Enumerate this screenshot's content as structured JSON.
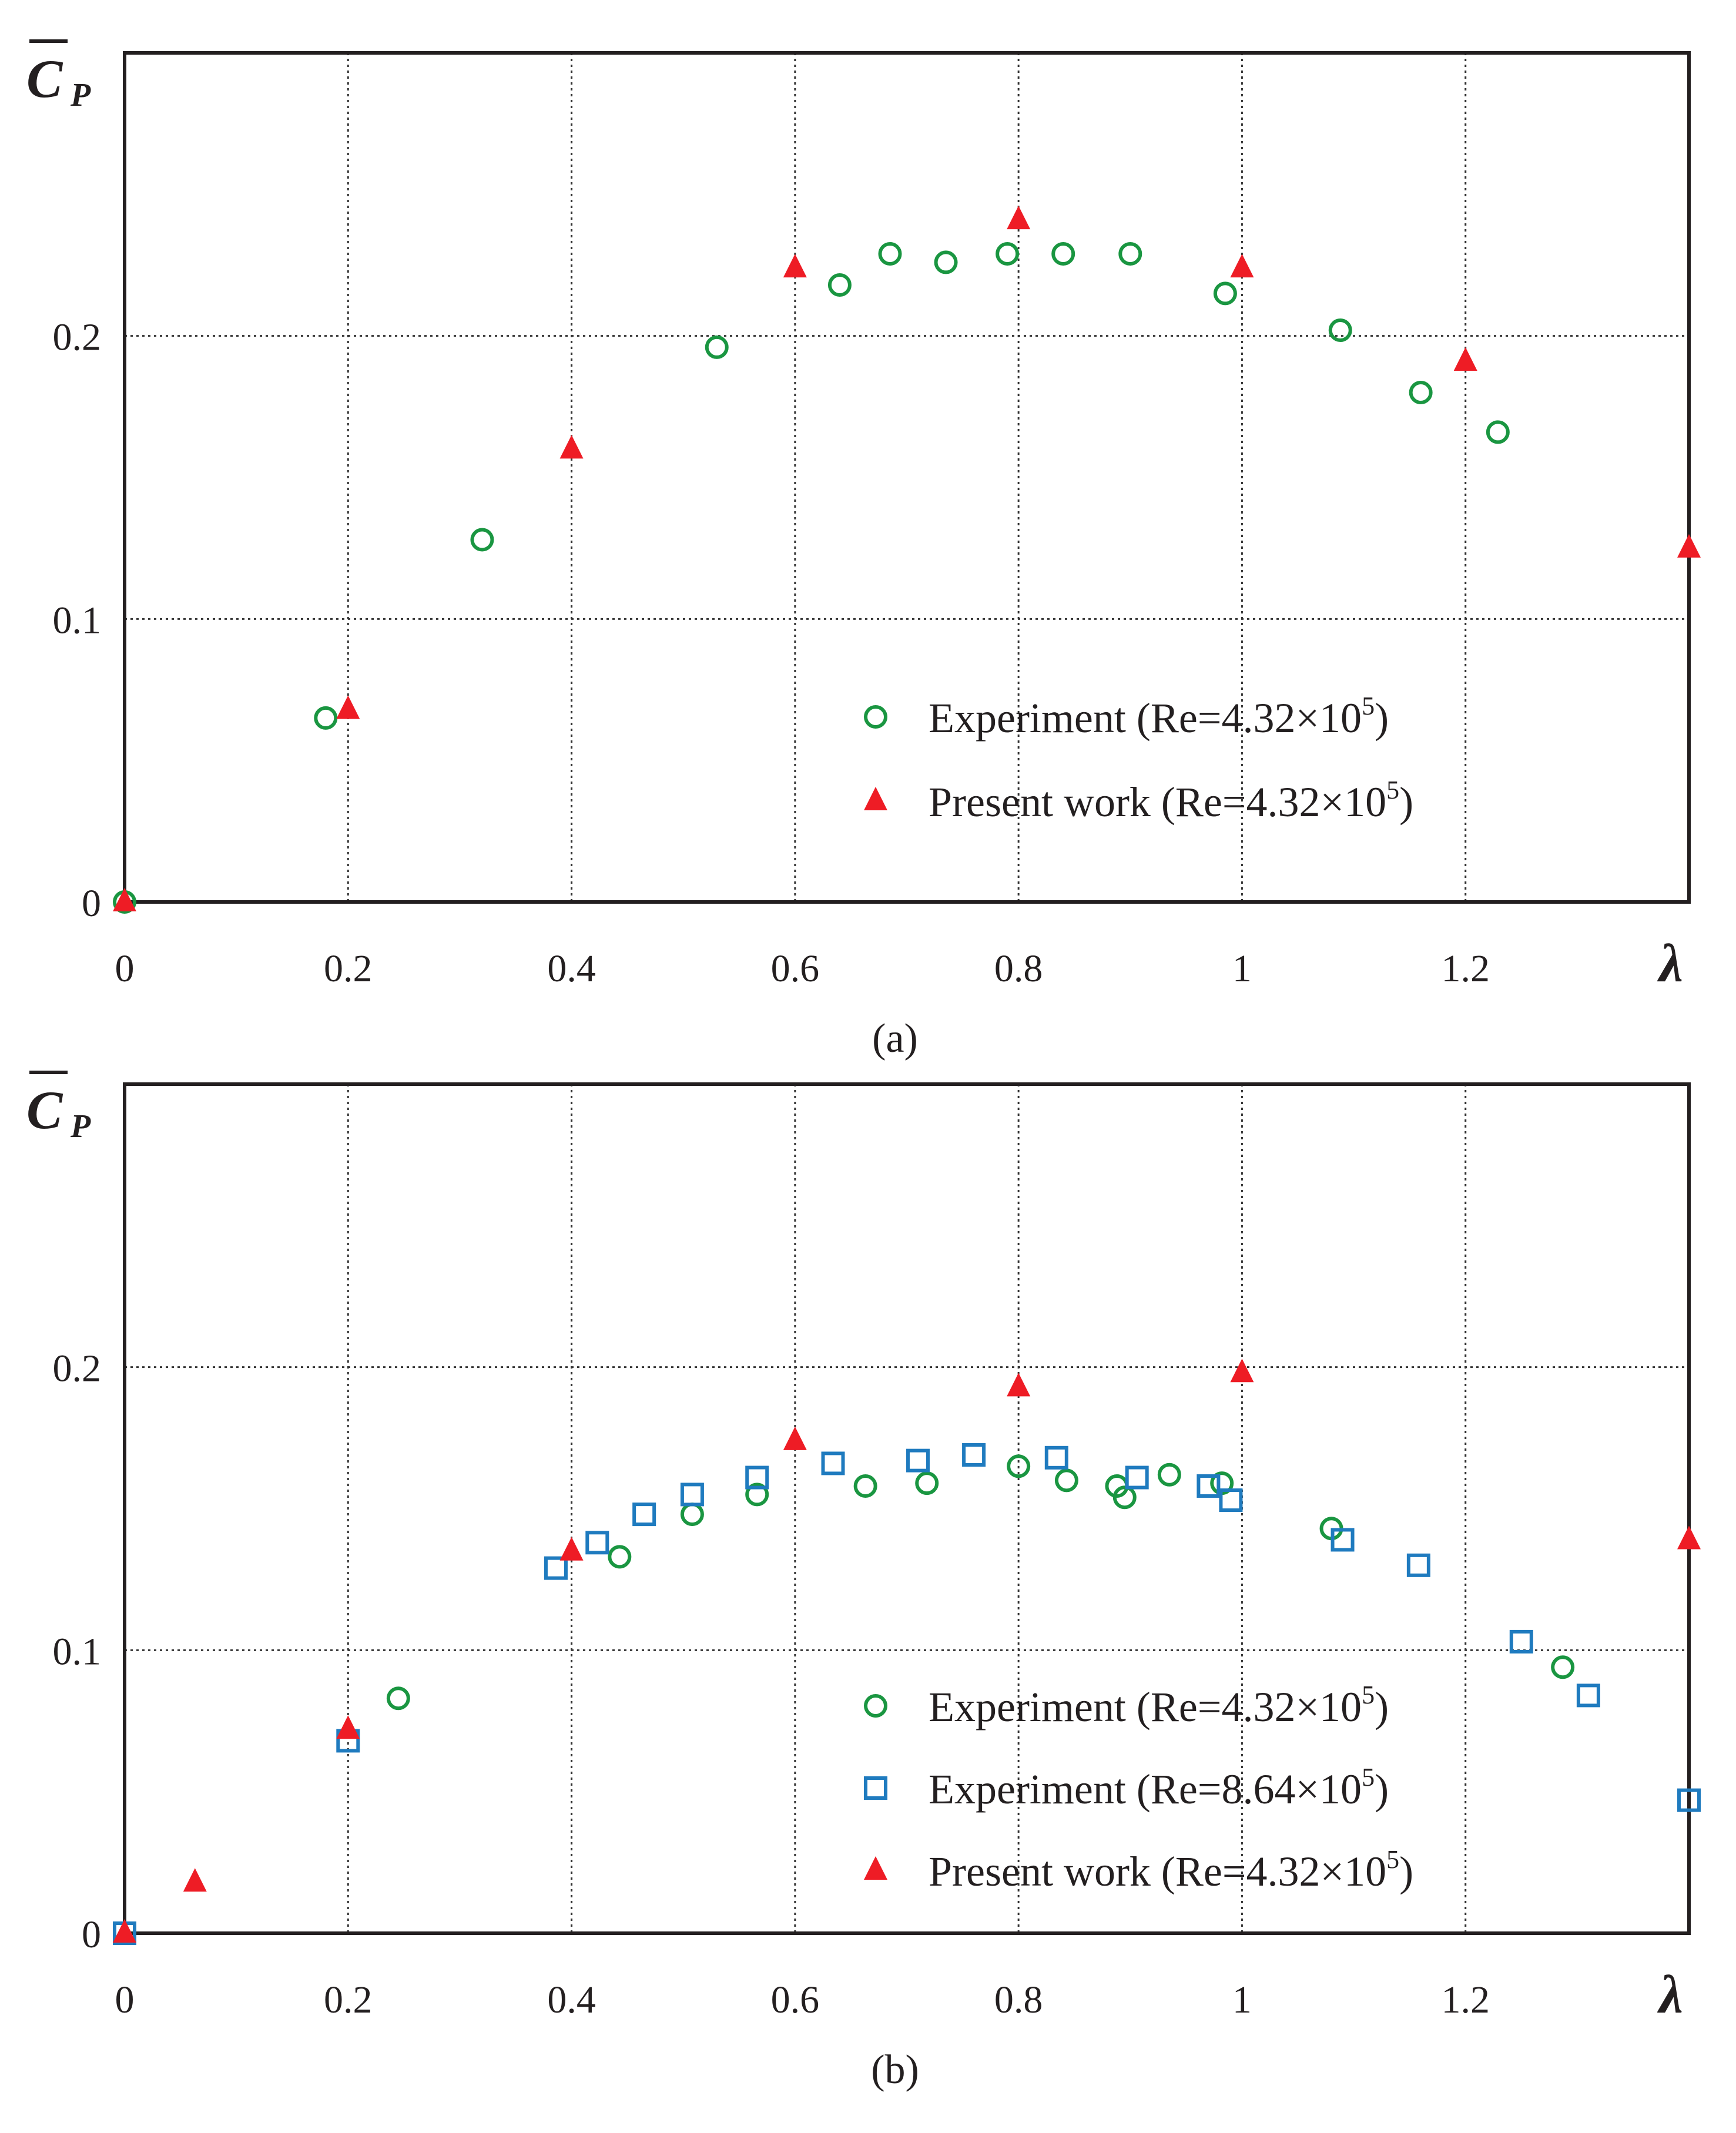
{
  "colors": {
    "experiment_re432": "#1a9641",
    "experiment_re864": "#1f7bbf",
    "present_work": "#ee1c25",
    "axis": "#231f20"
  },
  "chart_data": [
    {
      "type": "scatter",
      "panel_label": "(a)",
      "ylabel": "C",
      "ylabel_sub": "P",
      "xlabel": "λ",
      "xlim": [
        0,
        1.4
      ],
      "ylim": [
        0,
        0.3
      ],
      "grid": true,
      "legend_position": "bottom-right",
      "x_ticks": [
        {
          "value": 0,
          "label": "0"
        },
        {
          "value": 0.2,
          "label": "0.2"
        },
        {
          "value": 0.4,
          "label": "0.4"
        },
        {
          "value": 0.6,
          "label": "0.6"
        },
        {
          "value": 0.8,
          "label": "0.8"
        },
        {
          "value": 1.0,
          "label": "1"
        },
        {
          "value": 1.2,
          "label": "1.2"
        }
      ],
      "y_ticks": [
        {
          "value": 0,
          "label": "0"
        },
        {
          "value": 0.1,
          "label": "0.1"
        },
        {
          "value": 0.2,
          "label": "0.2"
        }
      ],
      "series": [
        {
          "name": "Experiment (Re=4.32×10",
          "name_sup": "5",
          "name_end": ")",
          "marker": "circle",
          "color_key": "experiment_re432",
          "x": [
            0,
            0.18,
            0.32,
            0.53,
            0.64,
            0.685,
            0.735,
            0.79,
            0.84,
            0.9,
            0.985,
            1.088,
            1.16,
            1.229
          ],
          "y": [
            0,
            0.065,
            0.128,
            0.196,
            0.218,
            0.229,
            0.226,
            0.229,
            0.229,
            0.229,
            0.215,
            0.202,
            0.18,
            0.166
          ]
        },
        {
          "name": "Present work (Re=4.32×10",
          "name_sup": "5",
          "name_end": ")",
          "marker": "triangle",
          "color_key": "present_work",
          "x": [
            0,
            0.2,
            0.4,
            0.6,
            0.8,
            1.0,
            1.2,
            1.4
          ],
          "y": [
            0,
            0.068,
            0.16,
            0.224,
            0.241,
            0.224,
            0.191,
            0.125
          ]
        }
      ]
    },
    {
      "type": "scatter",
      "panel_label": "(b)",
      "ylabel": "C",
      "ylabel_sub": "P",
      "xlabel": "λ",
      "xlim": [
        0,
        1.4
      ],
      "ylim": [
        0,
        0.3
      ],
      "grid": true,
      "legend_position": "bottom-right",
      "x_ticks": [
        {
          "value": 0,
          "label": "0"
        },
        {
          "value": 0.2,
          "label": "0.2"
        },
        {
          "value": 0.4,
          "label": "0.4"
        },
        {
          "value": 0.6,
          "label": "0.6"
        },
        {
          "value": 0.8,
          "label": "0.8"
        },
        {
          "value": 1.0,
          "label": "1"
        },
        {
          "value": 1.2,
          "label": "1.2"
        }
      ],
      "y_ticks": [
        {
          "value": 0,
          "label": "0"
        },
        {
          "value": 0.1,
          "label": "0.1"
        },
        {
          "value": 0.2,
          "label": "0.2"
        }
      ],
      "series": [
        {
          "name": "Experiment (Re=4.32×10",
          "name_sup": "5",
          "name_end": ")",
          "marker": "circle",
          "color_key": "experiment_re432",
          "x": [
            0.245,
            0.443,
            0.508,
            0.566,
            0.663,
            0.718,
            0.8,
            0.843,
            0.888,
            0.895,
            0.935,
            0.982,
            1.08,
            1.287
          ],
          "y": [
            0.083,
            0.133,
            0.148,
            0.155,
            0.158,
            0.159,
            0.165,
            0.16,
            0.158,
            0.154,
            0.162,
            0.159,
            0.143,
            0.094
          ]
        },
        {
          "name": "Experiment (Re=8.64×10",
          "name_sup": "5",
          "name_end": ")",
          "marker": "square",
          "color_key": "experiment_re864",
          "x": [
            0,
            0.2,
            0.386,
            0.423,
            0.465,
            0.508,
            0.566,
            0.634,
            0.71,
            0.76,
            0.834,
            0.906,
            0.97,
            0.99,
            1.09,
            1.158,
            1.25,
            1.31,
            1.4
          ],
          "y": [
            0,
            0.068,
            0.129,
            0.138,
            0.148,
            0.155,
            0.161,
            0.166,
            0.167,
            0.169,
            0.168,
            0.161,
            0.158,
            0.153,
            0.139,
            0.13,
            0.103,
            0.084,
            0.047
          ]
        },
        {
          "name": "Present work (Re=4.32×10",
          "name_sup": "5",
          "name_end": ")",
          "marker": "triangle",
          "color_key": "present_work",
          "x": [
            0,
            0.063,
            0.2,
            0.4,
            0.6,
            0.8,
            1.0,
            1.4
          ],
          "y": [
            0,
            0.018,
            0.072,
            0.135,
            0.174,
            0.193,
            0.198,
            0.139
          ]
        }
      ]
    }
  ]
}
